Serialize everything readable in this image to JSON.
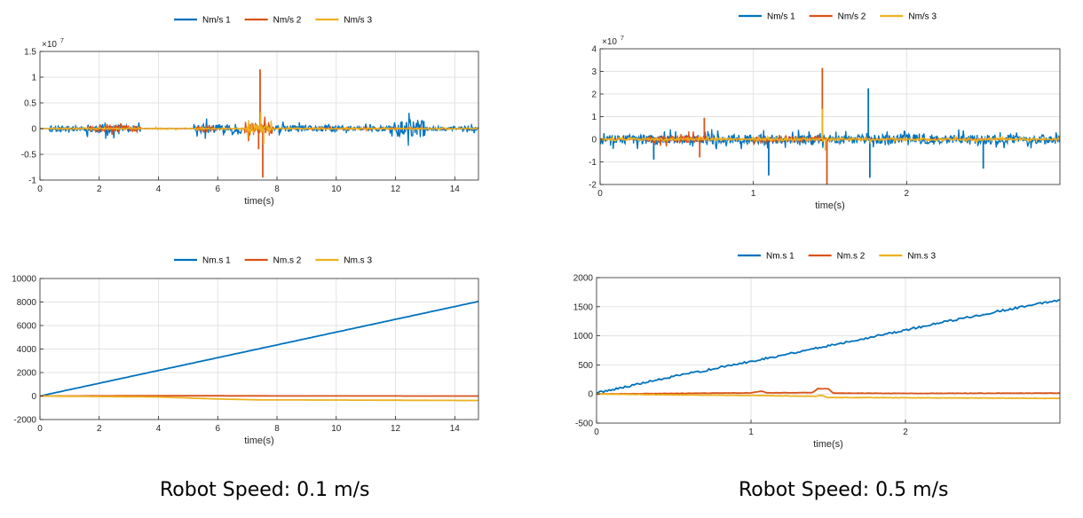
{
  "colors": {
    "s1": "#0072BD",
    "s2": "#D95319",
    "s3": "#EDB120",
    "grid": "#e3e3e3",
    "axis": "#262626"
  },
  "captions": {
    "left": "Robot Speed: 0.1 m/s",
    "right": "Robot Speed: 0.5 m/s"
  },
  "chart_data": [
    {
      "type": "line",
      "legend": [
        "Nm/s 1",
        "Nm/s 2",
        "Nm/s 3"
      ],
      "legend_position": "top",
      "xlabel": "time(s)",
      "ylabel": "",
      "exponent_label": "×10",
      "exponent_power": "7",
      "xlim": [
        0,
        14.8
      ],
      "ylim": [
        -1,
        1.5
      ],
      "xticks": [
        0,
        2,
        4,
        6,
        8,
        10,
        12,
        14
      ],
      "yticks": [
        -1,
        -0.5,
        0,
        0.5,
        1,
        1.5
      ],
      "ytick_labels": [
        "-1",
        "-0.5",
        "0",
        "0.5",
        "1",
        "1.5"
      ],
      "grid": true,
      "signal": "noise",
      "series": [
        {
          "name": "Nm/s 1",
          "color_key": "s1",
          "noise_segments": [
            [
              0.3,
              1.6,
              0.12
            ],
            [
              1.6,
              2.8,
              0.2
            ],
            [
              2.8,
              3.4,
              0.14
            ],
            [
              5.2,
              6.8,
              0.2
            ],
            [
              7.6,
              9.9,
              0.14
            ],
            [
              9.9,
              11.8,
              0.12
            ],
            [
              11.8,
              13.0,
              0.38
            ],
            [
              13.0,
              14.8,
              0.09
            ]
          ]
        },
        {
          "name": "Nm/s 2",
          "color_key": "s2",
          "noise_segments": [
            [
              1.6,
              3.4,
              0.15
            ],
            [
              5.3,
              6.0,
              0.1
            ],
            [
              6.9,
              7.5,
              0.3
            ],
            [
              7.5,
              7.9,
              0.3
            ],
            [
              9.0,
              13.0,
              0.03
            ]
          ],
          "spikes": [
            [
              7.43,
              1.15
            ],
            [
              7.52,
              -0.95
            ],
            [
              7.38,
              -0.4
            ]
          ]
        },
        {
          "name": "Nm/s 3",
          "color_key": "s3",
          "noise_segments": [
            [
              0.3,
              14.8,
              0.03
            ],
            [
              7.0,
              7.9,
              0.2
            ]
          ],
          "spikes": [
            [
              7.45,
              0.32
            ],
            [
              7.55,
              -0.3
            ]
          ]
        }
      ]
    },
    {
      "type": "line",
      "legend": [
        "Nm/s 1",
        "Nm/s 2",
        "Nm/s 3"
      ],
      "legend_position": "top",
      "xlabel": "time(s)",
      "ylabel": "",
      "exponent_label": "×10",
      "exponent_power": "7",
      "xlim": [
        0,
        3
      ],
      "ylim": [
        -2,
        4
      ],
      "xticks": [
        0,
        1,
        2
      ],
      "yticks": [
        -2,
        -1,
        0,
        1,
        2,
        3,
        4
      ],
      "ytick_labels": [
        "-2",
        "-1",
        "0",
        "1",
        "2",
        "3",
        "4"
      ],
      "grid": true,
      "signal": "noise",
      "series": [
        {
          "name": "Nm/s 1",
          "color_key": "s1",
          "noise_segments": [
            [
              0.0,
              3.0,
              0.45
            ]
          ],
          "spikes": [
            [
              1.75,
              2.25
            ],
            [
              1.1,
              -1.6
            ],
            [
              1.76,
              -1.7
            ],
            [
              2.5,
              -1.3
            ],
            [
              0.35,
              -0.9
            ]
          ]
        },
        {
          "name": "Nm/s 2",
          "color_key": "s2",
          "noise_segments": [
            [
              0.3,
              0.7,
              0.35
            ],
            [
              1.0,
              1.5,
              0.25
            ]
          ],
          "spikes": [
            [
              1.45,
              3.15
            ],
            [
              1.48,
              -2.0
            ],
            [
              0.68,
              0.95
            ],
            [
              0.65,
              -0.8
            ]
          ]
        },
        {
          "name": "Nm/s 3",
          "color_key": "s3",
          "noise_segments": [
            [
              0.0,
              3.0,
              0.12
            ]
          ],
          "spikes": [
            [
              1.45,
              1.35
            ],
            [
              1.47,
              -0.5
            ]
          ]
        }
      ]
    },
    {
      "type": "line",
      "legend": [
        "Nm.s 1",
        "Nm.s 2",
        "Nm.s 3"
      ],
      "legend_position": "top",
      "xlabel": "time(s)",
      "ylabel": "",
      "xlim": [
        0,
        14.8
      ],
      "ylim": [
        -2000,
        10000
      ],
      "xticks": [
        0,
        2,
        4,
        6,
        8,
        10,
        12,
        14
      ],
      "yticks": [
        -2000,
        0,
        2000,
        4000,
        6000,
        8000,
        10000
      ],
      "ytick_labels": [
        "-2000",
        "0",
        "2000",
        "4000",
        "6000",
        "8000",
        "10000"
      ],
      "grid": true,
      "signal": "line",
      "series": [
        {
          "name": "Nm.s 1",
          "color_key": "s1",
          "points": [
            [
              0,
              0
            ],
            [
              14.8,
              8050
            ]
          ],
          "jitter": 0
        },
        {
          "name": "Nm.s 2",
          "color_key": "s2",
          "points": [
            [
              0,
              0
            ],
            [
              4,
              30
            ],
            [
              8,
              10
            ],
            [
              14.8,
              0
            ]
          ],
          "jitter": 0
        },
        {
          "name": "Nm.s 3",
          "color_key": "s3",
          "points": [
            [
              0,
              0
            ],
            [
              4,
              -80
            ],
            [
              6,
              -250
            ],
            [
              7.5,
              -330
            ],
            [
              10,
              -340
            ],
            [
              14.8,
              -380
            ]
          ],
          "jitter": 0
        }
      ]
    },
    {
      "type": "line",
      "legend": [
        "Nm.s 1",
        "Nm.s 2",
        "Nm.s 3"
      ],
      "legend_position": "top",
      "xlabel": "time(s)",
      "ylabel": "",
      "xlim": [
        0,
        3
      ],
      "ylim": [
        -500,
        2000
      ],
      "xticks": [
        0,
        1,
        2
      ],
      "yticks": [
        -500,
        0,
        500,
        1000,
        1500,
        2000
      ],
      "ytick_labels": [
        "-500",
        "0",
        "500",
        "1000",
        "1500",
        "2000"
      ],
      "grid": true,
      "signal": "line",
      "series": [
        {
          "name": "Nm.s 1",
          "color_key": "s1",
          "points": [
            [
              0,
              20
            ],
            [
              0.5,
              300
            ],
            [
              1.0,
              560
            ],
            [
              1.5,
              830
            ],
            [
              2.0,
              1100
            ],
            [
              2.5,
              1370
            ],
            [
              3.0,
              1620
            ]
          ],
          "jitter": 18
        },
        {
          "name": "Nm.s 2",
          "color_key": "s2",
          "points": [
            [
              0,
              0
            ],
            [
              0.5,
              10
            ],
            [
              1.0,
              20
            ],
            [
              1.07,
              50
            ],
            [
              1.1,
              20
            ],
            [
              1.4,
              25
            ],
            [
              1.43,
              90
            ],
            [
              1.5,
              90
            ],
            [
              1.53,
              15
            ],
            [
              2.0,
              10
            ],
            [
              3.0,
              15
            ]
          ],
          "jitter": 3
        },
        {
          "name": "Nm.s 3",
          "color_key": "s3",
          "points": [
            [
              0,
              0
            ],
            [
              0.5,
              -15
            ],
            [
              1.0,
              -25
            ],
            [
              1.42,
              -40
            ],
            [
              1.45,
              -20
            ],
            [
              1.5,
              -60
            ],
            [
              2.0,
              -65
            ],
            [
              3.0,
              -75
            ]
          ],
          "jitter": 3
        }
      ]
    }
  ]
}
